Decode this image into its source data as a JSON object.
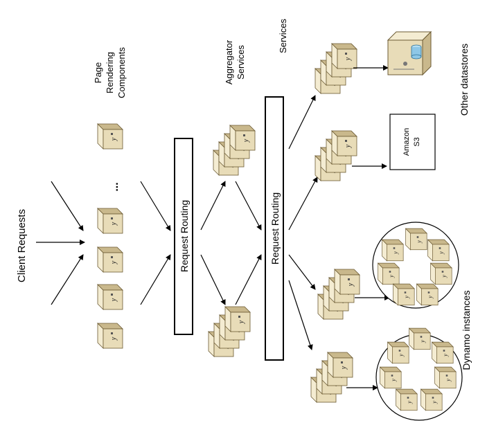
{
  "labels": {
    "client_requests": "Client Requests",
    "page_rendering": [
      "Page",
      "Rendering",
      "Components"
    ],
    "aggregator": [
      "Aggregator",
      "Services"
    ],
    "services": "Services",
    "request_routing_1": "Request Routing",
    "request_routing_2": "Request Routing",
    "amazon_s3": [
      "Amazon",
      "S3"
    ],
    "other_datastores": "Other datastores",
    "dynamo_instances": "Dynamo instances",
    "ellipsis": "..."
  },
  "icons": {
    "server": "server-icon",
    "database": "database-server-icon"
  },
  "colors": {
    "server_face": "#e8dcb8",
    "server_side": "#c9b88c",
    "server_top": "#f4ecd2",
    "cylinder": "#8ec7e6",
    "stroke": "#000000"
  }
}
